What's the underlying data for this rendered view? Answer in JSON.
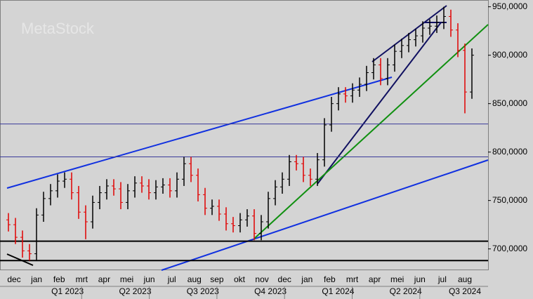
{
  "chart_data": {
    "type": "ohlc",
    "watermark": "MetaStock",
    "series": [
      {
        "up_color": "#000000",
        "down_color": "#e00000",
        "open": [
          730000,
          725000,
          712000,
          698000,
          695000,
          735000,
          752000,
          760000,
          770000,
          772000,
          758000,
          738000,
          728000,
          748000,
          758000,
          765000,
          762000,
          748000,
          760000,
          768000,
          765000,
          758000,
          764000,
          766000,
          760000,
          772000,
          788000,
          776000,
          756000,
          742000,
          744000,
          736000,
          726000,
          724000,
          730000,
          734000,
          716000,
          728000,
          752000,
          764000,
          772000,
          790000,
          788000,
          776000,
          772000,
          792000,
          828000,
          850000,
          860000,
          858000,
          864000,
          870000,
          882000,
          890000,
          876000,
          890000,
          904000,
          910000,
          916000,
          920000,
          928000,
          930000,
          934000,
          940000,
          926000,
          905000,
          862000
        ],
        "high": [
          737000,
          732000,
          719000,
          705000,
          742000,
          759000,
          767000,
          777000,
          779000,
          779000,
          765000,
          745000,
          755000,
          765000,
          772000,
          772000,
          769000,
          767000,
          775000,
          775000,
          772000,
          771000,
          773000,
          773000,
          779000,
          795000,
          795000,
          783000,
          763000,
          751000,
          751000,
          743000,
          733000,
          737000,
          741000,
          741000,
          735000,
          759000,
          771000,
          779000,
          797000,
          797000,
          795000,
          783000,
          799000,
          835000,
          857000,
          867000,
          867000,
          871000,
          877000,
          889000,
          897000,
          897000,
          897000,
          911000,
          917000,
          923000,
          927000,
          935000,
          937000,
          941000,
          950000,
          947000,
          933000,
          912000,
          907000
        ],
        "low": [
          718000,
          705000,
          691000,
          688000,
          688000,
          728000,
          745000,
          753000,
          763000,
          751000,
          731000,
          710000,
          721000,
          741000,
          751000,
          755000,
          741000,
          741000,
          753000,
          758000,
          751000,
          751000,
          757000,
          753000,
          753000,
          765000,
          769000,
          749000,
          735000,
          735000,
          729000,
          719000,
          717000,
          717000,
          723000,
          709000,
          709000,
          721000,
          745000,
          757000,
          765000,
          781000,
          769000,
          765000,
          765000,
          785000,
          821000,
          843000,
          851000,
          851000,
          857000,
          863000,
          875000,
          869000,
          869000,
          883000,
          897000,
          903000,
          909000,
          913000,
          921000,
          923000,
          927000,
          919000,
          898000,
          840000,
          855000
        ],
        "close": [
          725000,
          712000,
          698000,
          695000,
          735000,
          752000,
          760000,
          770000,
          772000,
          758000,
          738000,
          728000,
          748000,
          758000,
          765000,
          762000,
          748000,
          760000,
          768000,
          765000,
          758000,
          764000,
          766000,
          760000,
          772000,
          788000,
          776000,
          756000,
          742000,
          744000,
          736000,
          726000,
          724000,
          730000,
          734000,
          716000,
          728000,
          752000,
          764000,
          772000,
          790000,
          788000,
          776000,
          772000,
          792000,
          828000,
          850000,
          860000,
          858000,
          864000,
          870000,
          882000,
          890000,
          876000,
          890000,
          904000,
          910000,
          916000,
          920000,
          928000,
          930000,
          934000,
          940000,
          926000,
          905000,
          862000,
          900000
        ]
      }
    ],
    "ylim": [
      678000,
      957000
    ],
    "yticks": [
      {
        "value": 700000,
        "label": "700,0000"
      },
      {
        "value": 750000,
        "label": "750,0000"
      },
      {
        "value": 800000,
        "label": "800,0000"
      },
      {
        "value": 850000,
        "label": "850,0000"
      },
      {
        "value": 900000,
        "label": "900,0000"
      },
      {
        "value": 950000,
        "label": "950,0000"
      }
    ],
    "hlines": [
      {
        "value": 829000,
        "color": "#3a3a9a"
      },
      {
        "value": 795000,
        "color": "#3a3a9a"
      },
      {
        "value": 708000,
        "color": "#000000"
      },
      {
        "value": 688000,
        "color": "#000000"
      }
    ],
    "months": [
      "dec",
      "jan",
      "feb",
      "mrt",
      "apr",
      "mei",
      "jun",
      "jul",
      "aug",
      "sep",
      "okt",
      "nov",
      "dec",
      "jan",
      "feb",
      "mrt",
      "apr",
      "mei",
      "jun",
      "jul",
      "aug"
    ],
    "quarters": [
      "Q1 2023",
      "Q2 2023",
      "Q3 2023",
      "Q4 2023",
      "Q1 2024",
      "Q2 2024",
      "Q3 2024"
    ]
  }
}
